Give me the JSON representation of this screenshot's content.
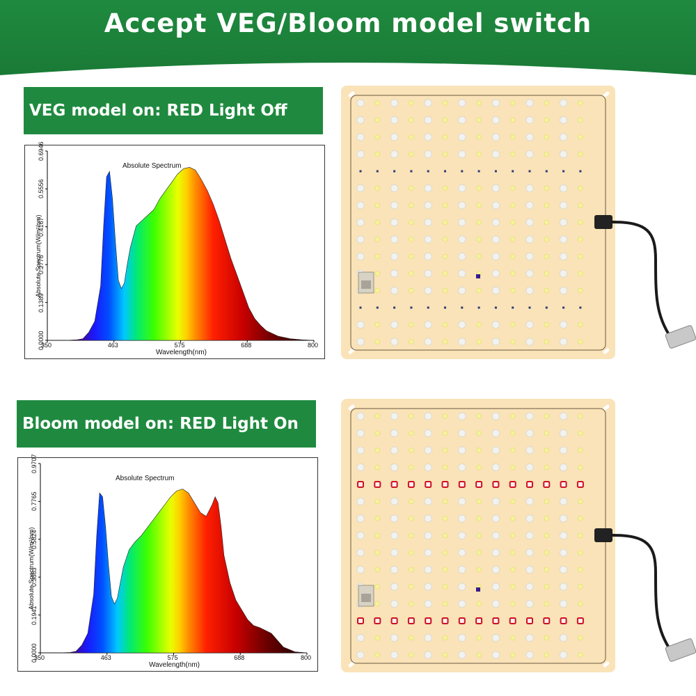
{
  "header": {
    "title": "Accept VEG/Bloom model switch"
  },
  "colors": {
    "banner_green": "#1f8a3f",
    "board": "#fae3b8",
    "led_white": "#f2f2ee",
    "led_yellow": "#f5f2a0",
    "led_red": "#cc1122",
    "led_uv": "#3a1a8a"
  },
  "modes": [
    {
      "label": "VEG model on: RED Light Off",
      "red_light": "off"
    },
    {
      "label": "Bloom model on: RED Light On",
      "red_light": "on"
    }
  ],
  "chart_data": [
    {
      "type": "area",
      "title": "Absolute Spectrum",
      "xlabel": "Wavelength(nm)",
      "ylabel": "Absolute Spectrum(W/m²/nm)",
      "xlim": [
        350,
        800
      ],
      "ylim": [
        0,
        0.6946
      ],
      "x_ticks": [
        "350",
        "463",
        "575",
        "688",
        "800"
      ],
      "y_ticks": [
        "0.0000",
        "0.1389",
        "0.2778",
        "0.4167",
        "0.5556",
        "0.6946"
      ],
      "x": [
        350,
        380,
        400,
        410,
        420,
        430,
        440,
        445,
        450,
        455,
        460,
        465,
        470,
        475,
        480,
        485,
        490,
        500,
        510,
        520,
        530,
        540,
        550,
        560,
        570,
        580,
        590,
        600,
        610,
        620,
        630,
        640,
        650,
        660,
        670,
        680,
        690,
        700,
        710,
        720,
        740,
        760,
        780,
        800
      ],
      "values": [
        0,
        0,
        0.002,
        0.006,
        0.03,
        0.07,
        0.2,
        0.42,
        0.6,
        0.62,
        0.52,
        0.36,
        0.22,
        0.19,
        0.21,
        0.28,
        0.34,
        0.42,
        0.44,
        0.46,
        0.48,
        0.52,
        0.55,
        0.58,
        0.61,
        0.63,
        0.635,
        0.625,
        0.59,
        0.55,
        0.5,
        0.44,
        0.37,
        0.3,
        0.24,
        0.18,
        0.12,
        0.08,
        0.055,
        0.035,
        0.015,
        0.006,
        0.002,
        0
      ]
    },
    {
      "type": "area",
      "title": "Absolute Spectrum",
      "xlabel": "Wavelength(nm)",
      "ylabel": "Absolute Spectrum(W/m²/nm)",
      "xlim": [
        350,
        800
      ],
      "ylim": [
        0,
        0.9707
      ],
      "x_ticks": [
        "350",
        "463",
        "575",
        "688",
        "800"
      ],
      "y_ticks": [
        "0.0000",
        "0.1941",
        "0.3883",
        "0.5824",
        "0.7765",
        "0.9707"
      ],
      "x": [
        350,
        380,
        400,
        410,
        420,
        430,
        440,
        445,
        450,
        455,
        460,
        465,
        470,
        475,
        480,
        485,
        490,
        500,
        510,
        520,
        530,
        540,
        550,
        560,
        570,
        580,
        590,
        600,
        610,
        620,
        630,
        640,
        645,
        650,
        655,
        660,
        670,
        680,
        690,
        700,
        710,
        720,
        740,
        760,
        780,
        800
      ],
      "values": [
        0,
        0,
        0.002,
        0.008,
        0.04,
        0.1,
        0.3,
        0.6,
        0.82,
        0.8,
        0.65,
        0.45,
        0.29,
        0.25,
        0.28,
        0.36,
        0.44,
        0.53,
        0.57,
        0.6,
        0.64,
        0.68,
        0.72,
        0.76,
        0.8,
        0.83,
        0.84,
        0.82,
        0.77,
        0.72,
        0.7,
        0.76,
        0.8,
        0.77,
        0.65,
        0.5,
        0.36,
        0.27,
        0.22,
        0.17,
        0.14,
        0.13,
        0.1,
        0.03,
        0.005,
        0
      ]
    }
  ]
}
